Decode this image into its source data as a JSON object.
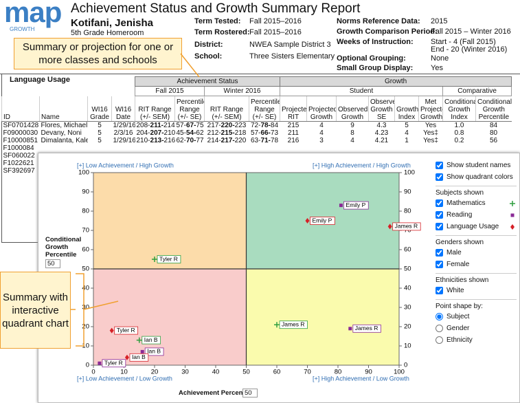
{
  "header": {
    "logo": "map",
    "logo_sub": "GROWTH",
    "title": "Achievement Status and Growth Summary Report",
    "student": "Kotifani, Jenisha",
    "group": "5th Grade Homeroom",
    "fields_left": [
      {
        "label": "Term Tested:",
        "value": "Fall 2015–2016"
      },
      {
        "label": "Term Rostered:",
        "value": "Fall 2015–2016"
      },
      {
        "label": "District:",
        "value": "NWEA Sample District 3"
      },
      {
        "label": "School:",
        "value": "Three Sisters Elementary"
      }
    ],
    "fields_right": [
      {
        "label": "Norms Reference Data:",
        "value": "2015"
      },
      {
        "label": "Growth Comparison Period:",
        "value": "Fall 2015 – Winter 2016"
      },
      {
        "label": "Weeks of Instruction:",
        "value": "Start - 4 (Fall 2015)",
        "value2": "End - 20 (Winter 2016)"
      },
      {
        "label": "Optional Grouping:",
        "value": "None"
      },
      {
        "label": "Small Group Display:",
        "value": "Yes"
      }
    ]
  },
  "callouts": [
    "Summary or projection for one or more classes and schools",
    "Summary with interactive quadrant chart"
  ],
  "table": {
    "subject": "Language Usage",
    "groups": [
      "Achievement Status",
      "Growth"
    ],
    "subgroups": [
      "Fall 2015",
      "Winter 2016",
      "Student",
      "Comparative"
    ],
    "columns": [
      "ID",
      "Name",
      "WI16 Grade",
      "WI16 Date",
      "RIT Range (+/- SEM)",
      "Percentile Range (+/- SE)",
      "RIT Range (+/- SEM)",
      "Percentile Range (+/- SE)",
      "Projected RIT",
      "Projected Growth",
      "Observed Growth",
      "Observed Growth SE",
      "Growth Index",
      "Met Projected Growth",
      "Conditional Growth Index",
      "Conditional Growth Percentile"
    ],
    "rows": [
      [
        "SF0701428",
        "Flores, Michael S.",
        "5",
        "1/29/16",
        "208-211-214",
        "57-67-75",
        "217-220-223",
        "72-78-84",
        "215",
        "4",
        "9",
        "4.3",
        "5",
        "Yes",
        "1.0",
        "84"
      ],
      [
        "F09000030",
        "Devany, Noni",
        "5",
        "2/3/16",
        "204-207-210",
        "45-54-62",
        "212-215-218",
        "57-66-73",
        "211",
        "4",
        "8",
        "4.23",
        "4",
        "Yes‡",
        "0.8",
        "80"
      ],
      [
        "F10000851",
        "Dimalanta, Kaleigha",
        "5",
        "1/29/16",
        "210-213-216",
        "62-70-77",
        "214-217-220",
        "63-71-78",
        "216",
        "3",
        "4",
        "4.21",
        "1",
        "Yes‡",
        "0.2",
        "56"
      ]
    ],
    "more_ids": [
      "F1000084",
      "SF060022",
      "F1022621",
      "SF392697"
    ]
  },
  "quadrant_chart": {
    "type": "scatter",
    "xlabel": "Achievement Percentile",
    "ylabel": "Conditional Growth Percentile",
    "xlim": [
      0,
      100
    ],
    "ylim": [
      0,
      100
    ],
    "xticks": [
      0,
      10,
      20,
      30,
      40,
      50,
      60,
      70,
      80,
      90,
      100
    ],
    "yticks": [
      0,
      10,
      20,
      30,
      40,
      50,
      60,
      70,
      80,
      90,
      100
    ],
    "x_split": 50,
    "y_split": 50,
    "quadrant_labels": [
      "[+] Low Achievement / High Growth",
      "[+] High Achievement / High Growth",
      "[+] Low Achievement / Low Growth",
      "[+] High Achievement / Low Growth"
    ],
    "quadrant_colors": [
      "#fcdcaa",
      "#a9dcbf",
      "#f9cccb",
      "#fafbad"
    ],
    "series": [
      {
        "name": "Mathematics",
        "color": "#2e9e3e",
        "shape": "plus",
        "points": [
          {
            "label": "Tyler R",
            "x": 20,
            "y": 55
          },
          {
            "label": "James R",
            "x": 60,
            "y": 21
          },
          {
            "label": "Ian B",
            "x": 15,
            "y": 13
          }
        ]
      },
      {
        "name": "Reading",
        "color": "#8a2a96",
        "shape": "square",
        "points": [
          {
            "label": "Emily P",
            "x": 81,
            "y": 83
          },
          {
            "label": "James R",
            "x": 84,
            "y": 19
          },
          {
            "label": "Ian B",
            "x": 16,
            "y": 7
          },
          {
            "label": "Tyler R",
            "x": 2,
            "y": 1
          }
        ]
      },
      {
        "name": "Language Usage",
        "color": "#d62027",
        "shape": "diamond",
        "points": [
          {
            "label": "Emily P",
            "x": 70,
            "y": 75
          },
          {
            "label": "James R",
            "x": 97,
            "y": 72
          },
          {
            "label": "Tyler R",
            "x": 6,
            "y": 18
          },
          {
            "label": "Ian B",
            "x": 11,
            "y": 4
          }
        ]
      }
    ],
    "controls": {
      "show_names": {
        "label": "Show student names",
        "checked": true
      },
      "show_colors": {
        "label": "Show quadrant colors",
        "checked": true
      },
      "subjects_title": "Subjects shown",
      "genders_title": "Genders shown",
      "genders": [
        {
          "label": "Male",
          "checked": true
        },
        {
          "label": "Female",
          "checked": true
        }
      ],
      "ethnicities_title": "Ethnicities shown",
      "ethnicities": [
        {
          "label": "White",
          "checked": true
        }
      ],
      "shape_title": "Point shape by:",
      "shape_options": [
        "Subject",
        "Gender",
        "Ethnicity"
      ],
      "shape_selected": 0
    }
  }
}
